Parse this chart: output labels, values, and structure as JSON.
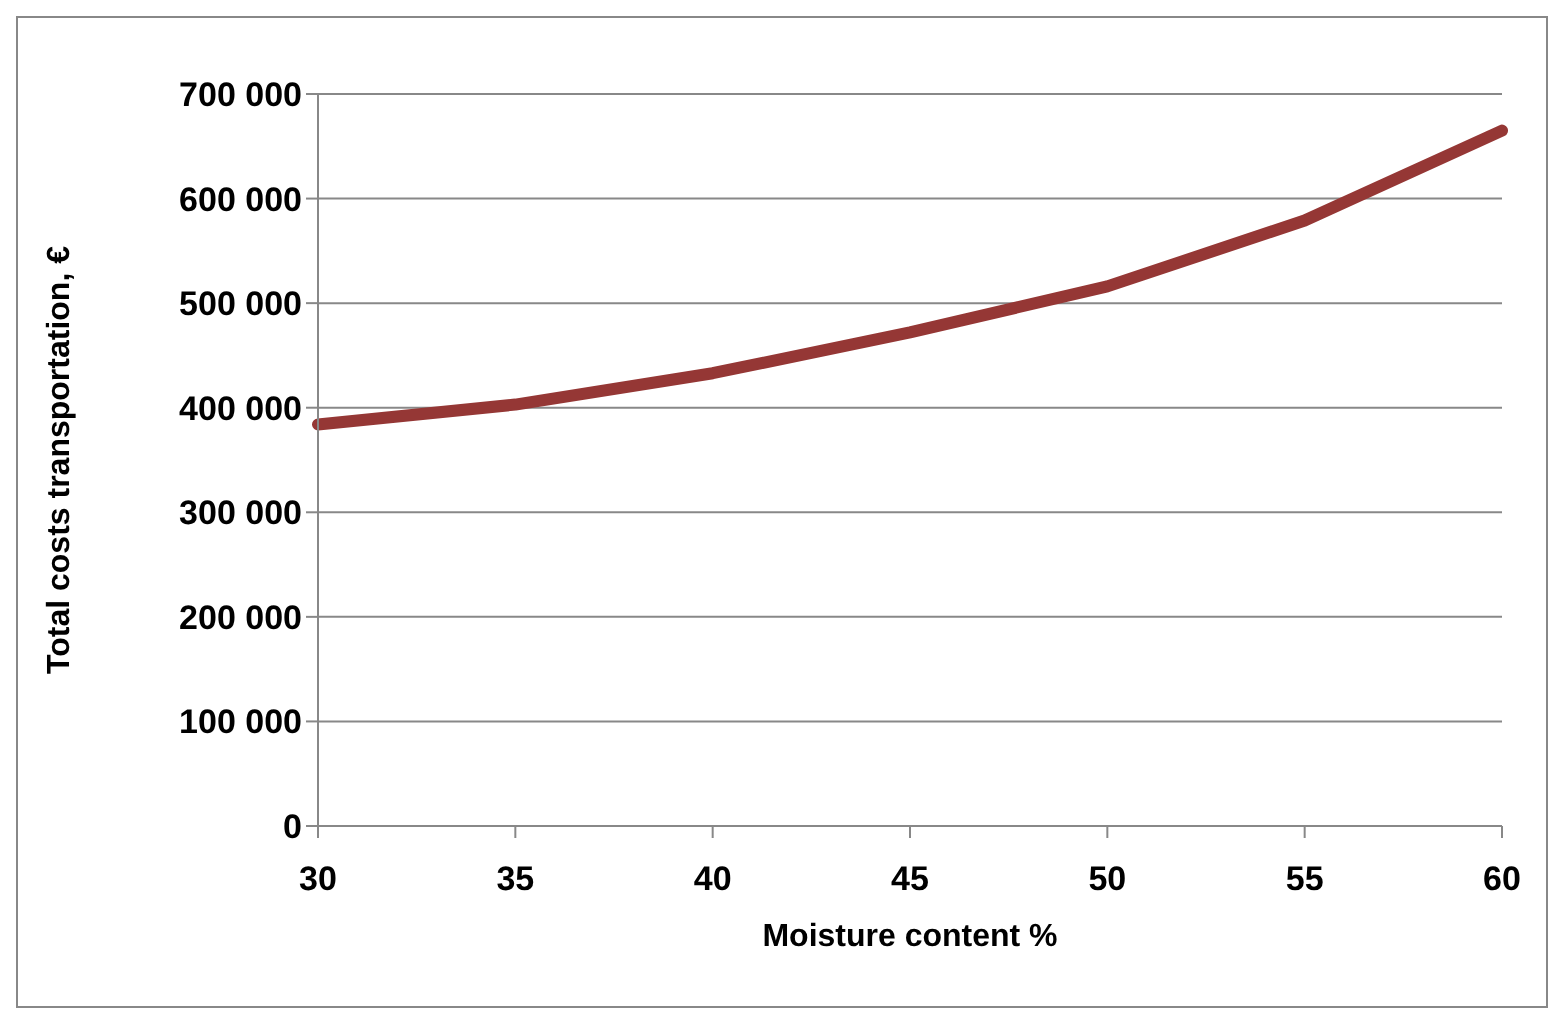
{
  "chart_data": {
    "type": "line",
    "xlabel": "Moisture content  %",
    "ylabel": "Total costs transportation,  €",
    "categories": [
      "30",
      "35",
      "40",
      "45",
      "50",
      "55",
      "60"
    ],
    "series": [
      {
        "color": "#953735",
        "values": [
          384000,
          403000,
          433000,
          472000,
          516000,
          579000,
          665000
        ]
      }
    ],
    "ylim": [
      0,
      700000
    ],
    "yticks": [
      {
        "value": 0,
        "label": "0"
      },
      {
        "value": 100000,
        "label": "100 000"
      },
      {
        "value": 200000,
        "label": "200 000"
      },
      {
        "value": 300000,
        "label": "300 000"
      },
      {
        "value": 400000,
        "label": "400 000"
      },
      {
        "value": 500000,
        "label": "500 000"
      },
      {
        "value": 600000,
        "label": "600 000"
      },
      {
        "value": 700000,
        "label": "700 000"
      }
    ],
    "grid": "y",
    "legend": false,
    "marker": "none",
    "line_style": "solid"
  }
}
